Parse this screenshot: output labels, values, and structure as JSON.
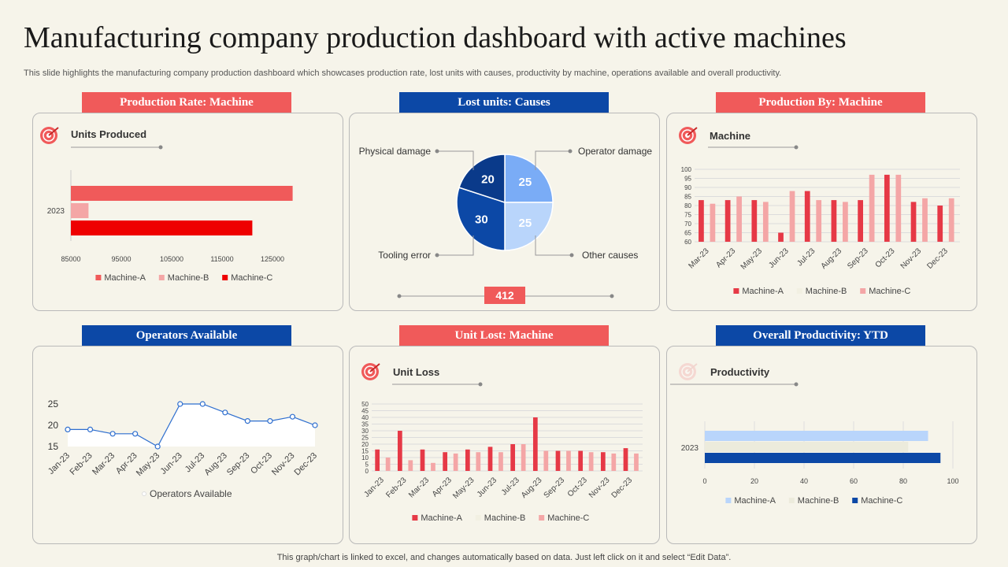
{
  "page": {
    "title": "Manufacturing company production dashboard with active machines",
    "subtitle": "This slide highlights the manufacturing company production dashboard which showcases production rate, lost units with causes, productivity by machine, operations available and overall productivity.",
    "footer": "This graph/chart is linked to excel,  and changes automatically based on data. Just left click on it and select “Edit Data”."
  },
  "colors": {
    "red": "#f05a5a",
    "blue": "#0c48a6",
    "machine_a_red": "#e63946",
    "machine_b_red": "#f4a6a6",
    "machine_c_red": "#ee0000"
  },
  "headers": {
    "p1": "Production Rate: Machine",
    "p2": "Lost units: Causes",
    "p3": "Production By: Machine",
    "p4": "Operators Available",
    "p5": "Unit Lost: Machine",
    "p6": "Overall Productivity: YTD"
  },
  "panels": {
    "p1_label": "Units Produced",
    "p3_label": "Machine",
    "p5_label": "Unit Loss",
    "p6_label": "Productivity",
    "p2_total": "412"
  },
  "chart_data": [
    {
      "id": "production_rate",
      "type": "bar",
      "orientation": "horizontal",
      "title": "Units Produced",
      "categories": [
        "2023"
      ],
      "series": [
        {
          "name": "Machine-A",
          "values": [
            129000
          ],
          "color": "#f05a5a"
        },
        {
          "name": "Machine-B",
          "values": [
            88500
          ],
          "color": "#f4a6a6"
        },
        {
          "name": "Machine-C",
          "values": [
            121000
          ],
          "color": "#ee0000"
        }
      ],
      "xlim": [
        85000,
        135000
      ],
      "xticks": [
        "85000",
        "95000",
        "105000",
        "115000",
        "125000"
      ],
      "xtick_values": [
        85000,
        95000,
        105000,
        115000,
        125000
      ],
      "legend": "bottom"
    },
    {
      "id": "lost_units_causes",
      "type": "pie",
      "title": "Lost units: Causes",
      "slices": [
        {
          "label": "Operator damage",
          "value": 25,
          "color": "#7aacf6"
        },
        {
          "label": "Other causes",
          "value": 25,
          "color": "#b9d5fb"
        },
        {
          "label": "Tooling error",
          "value": 30,
          "color": "#0c48a6"
        },
        {
          "label": "Physical damage",
          "value": 20,
          "color": "#0a3a8a"
        }
      ]
    },
    {
      "id": "production_by_machine",
      "type": "bar",
      "title": "Machine",
      "categories": [
        "Mar-23",
        "Apr-23",
        "May-23",
        "Jun-23",
        "Jul-23",
        "Aug-23",
        "Sep-23",
        "Oct-23",
        "Nov-23",
        "Dec-23"
      ],
      "series": [
        {
          "name": "Machine-A",
          "values": [
            83,
            83,
            83,
            65,
            88,
            83,
            83,
            97,
            82,
            80
          ],
          "color": "#e63946"
        },
        {
          "name": "Machine-B",
          "values": [
            0,
            0,
            0,
            0,
            0,
            0,
            0,
            0,
            0,
            0
          ],
          "color": "#f2f0e2"
        },
        {
          "name": "Machine-C",
          "values": [
            81,
            85,
            82,
            88,
            83,
            82,
            97,
            97,
            84,
            84
          ],
          "color": "#f4a6a6"
        }
      ],
      "ylim": [
        60,
        100
      ],
      "yticks": [
        "60",
        "65",
        "70",
        "75",
        "80",
        "85",
        "90",
        "95",
        "100"
      ],
      "ytick_values": [
        60,
        65,
        70,
        75,
        80,
        85,
        90,
        95,
        100
      ],
      "legend": "bottom"
    },
    {
      "id": "operators_available",
      "type": "area",
      "title": "",
      "categories": [
        "Jan-23",
        "Feb-23",
        "Mar-23",
        "Apr-23",
        "May-23",
        "Jun-23",
        "Jul-23",
        "Aug-23",
        "Sep-23",
        "Oct-23",
        "Nov-23",
        "Dec-23"
      ],
      "series": [
        {
          "name": "Operators Available",
          "values": [
            19,
            19,
            18,
            18,
            15,
            25,
            25,
            23,
            21,
            21,
            22,
            20
          ],
          "color": "#2f6fcf"
        }
      ],
      "ylim": [
        15,
        25
      ],
      "yticks": [
        "15",
        "20",
        "25"
      ],
      "ytick_values": [
        15,
        20,
        25
      ],
      "legend": "bottom"
    },
    {
      "id": "unit_lost_machine",
      "type": "bar",
      "title": "Unit Loss",
      "categories": [
        "Jan-23",
        "Feb-23",
        "Mar-23",
        "Apr-23",
        "May-23",
        "Jun-23",
        "Jul-23",
        "Aug-23",
        "Sep-23",
        "Oct-23",
        "Nov-23",
        "Dec-23"
      ],
      "series": [
        {
          "name": "Machine-A",
          "values": [
            16,
            30,
            16,
            14,
            16,
            18,
            20,
            40,
            15,
            15,
            14,
            17
          ],
          "color": "#e63946"
        },
        {
          "name": "Machine-B",
          "values": [
            0,
            0,
            0,
            0,
            0,
            0,
            0,
            0,
            0,
            0,
            0,
            0
          ],
          "color": "#f2f0e2"
        },
        {
          "name": "Machine-C",
          "values": [
            10,
            8,
            6,
            13,
            14,
            14,
            20,
            15,
            15,
            14,
            13,
            13
          ],
          "color": "#f4a6a6"
        }
      ],
      "ylim": [
        0,
        50
      ],
      "yticks": [
        "0",
        "5",
        "10",
        "15",
        "20",
        "25",
        "30",
        "35",
        "40",
        "45",
        "50"
      ],
      "ytick_values": [
        0,
        5,
        10,
        15,
        20,
        25,
        30,
        35,
        40,
        45,
        50
      ],
      "legend": "bottom"
    },
    {
      "id": "overall_productivity",
      "type": "bar",
      "orientation": "horizontal",
      "title": "Productivity",
      "categories": [
        "2023"
      ],
      "series": [
        {
          "name": "Machine-A",
          "values": [
            90
          ],
          "color": "#b9d5fb"
        },
        {
          "name": "Machine-B",
          "values": [
            82
          ],
          "color": "#ecebdc"
        },
        {
          "name": "Machine-C",
          "values": [
            95
          ],
          "color": "#0c48a6"
        }
      ],
      "xlim": [
        0,
        100
      ],
      "xticks": [
        "0",
        "20",
        "40",
        "60",
        "80",
        "100"
      ],
      "xtick_values": [
        0,
        20,
        40,
        60,
        80,
        100
      ],
      "legend": "bottom"
    }
  ]
}
